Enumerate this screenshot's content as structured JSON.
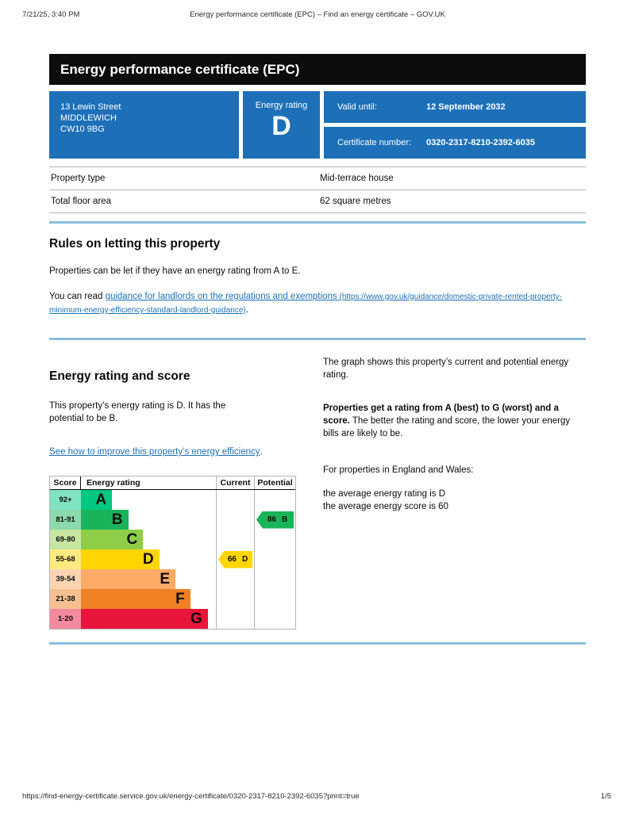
{
  "print_header": {
    "datetime": "7/21/25, 3:40 PM",
    "title": "Energy performance certificate (EPC) – Find an energy certificate – GOV.UK"
  },
  "banner": {
    "title": "Energy performance certificate (EPC)"
  },
  "property": {
    "address_line1": "13 Lewin Street",
    "address_line2": "MIDDLEWICH",
    "postcode": "CW10 9BG",
    "energy_rating_label": "Energy rating",
    "energy_rating": "D",
    "valid_until_label": "Valid until:",
    "valid_until": "12 September 2032",
    "certificate_number_label": "Certificate number:",
    "certificate_number": "0320-2317-8210-2392-6035"
  },
  "summary": {
    "rows": [
      {
        "label": "Property type",
        "value": "Mid-terrace house"
      },
      {
        "label": "Total floor area",
        "value": "62 square metres"
      }
    ]
  },
  "letting": {
    "heading": "Rules on letting this property",
    "paragraph": "Properties can be let if they have an energy rating from A to E.",
    "read_prefix": "You can read ",
    "link_text": "guidance for landlords on the regulations and exemptions",
    "link_url_display": " (https://www.gov.uk/guidance/domestic-private-rented-property-minimum-energy-efficiency-standard-landlord-guidance)",
    "suffix": "."
  },
  "rating_section": {
    "heading": "Energy rating and score",
    "intro": "This property’s energy rating is D. It has the\npotential to be B.",
    "improve_link": "See how to improve this property’s energy efficiency",
    "improve_suffix": ".",
    "graph_note": "The graph shows this property’s current and potential energy rating.",
    "explain_bold": "Properties get a rating from A (best) to G (worst) and a score.",
    "explain_rest": " The better the rating and score, the lower your energy bills are likely to be.",
    "england_wales": "For properties in England and Wales:",
    "averages": "the average energy rating is D\nthe average energy score is 60"
  },
  "chart_data": {
    "type": "bar",
    "title": "Energy rating and score",
    "columns": {
      "score": "Score",
      "rating": "Energy rating",
      "current": "Current",
      "potential": "Potential"
    },
    "bands": [
      {
        "score": "92+",
        "letter": "A",
        "color": "#00c781",
        "tint": "#80e3c0"
      },
      {
        "score": "81-91",
        "letter": "B",
        "color": "#19b459",
        "tint": "#8cd9ac"
      },
      {
        "score": "69-80",
        "letter": "C",
        "color": "#8dce46",
        "tint": "#c6e6a2"
      },
      {
        "score": "55-68",
        "letter": "D",
        "color": "#ffd500",
        "tint": "#ffea80"
      },
      {
        "score": "39-54",
        "letter": "E",
        "color": "#fcaa65",
        "tint": "#fdd4b2"
      },
      {
        "score": "21-38",
        "letter": "F",
        "color": "#ef8023",
        "tint": "#f7bf91"
      },
      {
        "score": "1-20",
        "letter": "G",
        "color": "#e9153b",
        "tint": "#f48a9d"
      }
    ],
    "current": {
      "score": "66",
      "band": "D",
      "row": 3,
      "color": "#ffd500"
    },
    "potential": {
      "score": "86",
      "band": "B",
      "row": 1,
      "color": "#19b459"
    }
  },
  "footer": {
    "url": "https://find-energy-certificate.service.gov.uk/energy-certificate/0320-2317-8210-2392-6035?print=true",
    "page": "1/5"
  },
  "colors": {
    "brand_blue": "#1d70b8",
    "separator_blue": "#8bbdde",
    "border_grey": "#b1b4b6"
  }
}
